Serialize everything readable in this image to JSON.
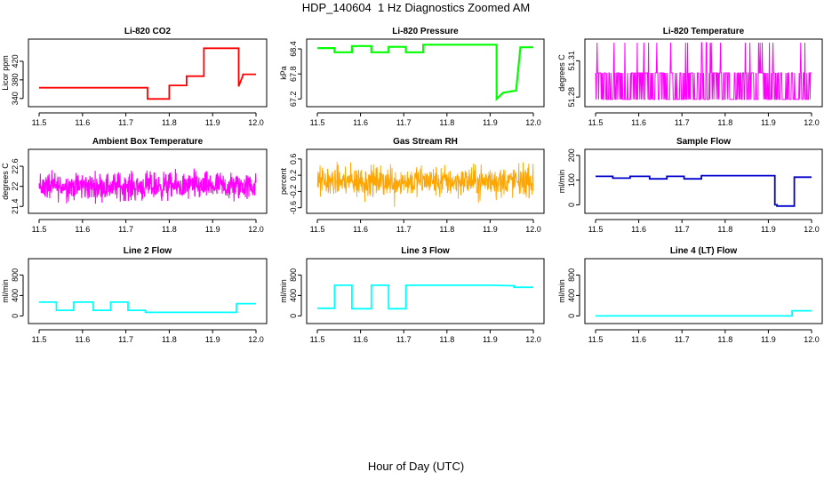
{
  "figure": {
    "title": "HDP_140604  1 Hz Diagnostics Zoomed AM",
    "xlabel": "Hour of Day (UTC)"
  },
  "chart_data": [
    {
      "type": "line",
      "title": "Li-820 CO2",
      "ylabel": "Licor ppm",
      "color": "#ff0000",
      "xlim": [
        11.5,
        12.0
      ],
      "ylim": [
        330,
        460
      ],
      "yticks": [
        340,
        380,
        420
      ],
      "xticks": [
        "11.5",
        "11.6",
        "11.7",
        "11.8",
        "11.9",
        "12.0"
      ],
      "x": [
        11.5,
        11.75,
        11.75,
        11.8,
        11.8,
        11.84,
        11.84,
        11.88,
        11.88,
        11.96,
        11.96,
        11.97,
        11.97,
        12.0
      ],
      "y": [
        363,
        363,
        339,
        339,
        368,
        368,
        388,
        388,
        448,
        448,
        366,
        390,
        392,
        392
      ]
    },
    {
      "type": "line",
      "title": "Li-820 Pressure",
      "ylabel": "kPa",
      "color": "#00ff00",
      "xlim": [
        11.5,
        12.0
      ],
      "ylim": [
        67.1,
        68.55
      ],
      "yticks": [
        67.2,
        67.8,
        68.4
      ],
      "xticks": [
        "11.5",
        "11.6",
        "11.7",
        "11.8",
        "11.9",
        "12.0"
      ],
      "x": [
        11.5,
        11.54,
        11.54,
        11.58,
        11.58,
        11.625,
        11.625,
        11.665,
        11.665,
        11.705,
        11.705,
        11.745,
        11.745,
        11.915,
        11.915,
        11.93,
        11.93,
        11.96,
        11.96,
        11.97,
        11.97,
        12.0
      ],
      "y": [
        68.42,
        68.42,
        68.32,
        68.32,
        68.47,
        68.47,
        68.32,
        68.32,
        68.45,
        68.45,
        68.32,
        68.32,
        68.5,
        68.5,
        67.2,
        67.35,
        67.35,
        67.4,
        67.4,
        68.42,
        68.44,
        68.44
      ]
    },
    {
      "type": "line",
      "title": "Li-820 Temperature",
      "ylabel": "degrees C",
      "color": "#ff00ff",
      "xlim": [
        11.5,
        12.0
      ],
      "ylim": [
        51.275,
        51.325
      ],
      "yticks": [
        51.28,
        51.31
      ],
      "xticks": [
        "11.5",
        "11.6",
        "11.7",
        "11.8",
        "11.9",
        "12.0"
      ],
      "base": 51.3,
      "high": 51.325,
      "low": 51.278
    },
    {
      "type": "line",
      "title": "Ambient Box Temperature",
      "ylabel": "degrees C",
      "color": "#ff00ff",
      "xlim": [
        11.5,
        12.0
      ],
      "ylim": [
        21.3,
        23.0
      ],
      "yticks": [
        21.4,
        22.0,
        22.6
      ],
      "xticks": [
        "11.5",
        "11.6",
        "11.7",
        "11.8",
        "11.9",
        "12.0"
      ],
      "center": 22.0,
      "spread": 0.55
    },
    {
      "type": "line",
      "title": "Gas Stream RH",
      "ylabel": "percent",
      "color": "#ffa500",
      "xlim": [
        11.5,
        12.0
      ],
      "ylim": [
        -0.65,
        0.75
      ],
      "yticks": [
        -0.6,
        -0.2,
        0.2,
        0.6
      ],
      "xticks": [
        "11.5",
        "11.6",
        "11.7",
        "11.8",
        "11.9",
        "12.0"
      ],
      "center": 0.05,
      "spread": 0.5
    },
    {
      "type": "line",
      "title": "Sample Flow",
      "ylabel": "ml/min",
      "color": "#0000cd",
      "xlim": [
        11.5,
        12.0
      ],
      "ylim": [
        -20,
        210
      ],
      "yticks": [
        0,
        100,
        200
      ],
      "xticks": [
        "11.5",
        "11.6",
        "11.7",
        "11.8",
        "11.9",
        "12.0"
      ],
      "x": [
        11.5,
        11.54,
        11.54,
        11.58,
        11.58,
        11.625,
        11.625,
        11.665,
        11.665,
        11.705,
        11.705,
        11.745,
        11.745,
        11.915,
        11.915,
        11.92,
        11.92,
        11.96,
        11.96,
        12.0
      ],
      "y": [
        115,
        115,
        108,
        108,
        115,
        115,
        105,
        105,
        115,
        115,
        105,
        105,
        118,
        118,
        0,
        0,
        -5,
        -5,
        112,
        112
      ]
    },
    {
      "type": "line",
      "title": "Line 2 Flow",
      "ylabel": "ml/min",
      "color": "#00ffff",
      "xlim": [
        11.5,
        12.0
      ],
      "ylim": [
        -80,
        1050
      ],
      "yticks": [
        0,
        400,
        800
      ],
      "xticks": [
        "11.5",
        "11.6",
        "11.7",
        "11.8",
        "11.9",
        "12.0"
      ],
      "x": [
        11.5,
        11.54,
        11.54,
        11.58,
        11.58,
        11.625,
        11.625,
        11.665,
        11.665,
        11.705,
        11.705,
        11.745,
        11.745,
        11.955,
        11.955,
        12.0
      ],
      "y": [
        270,
        270,
        110,
        110,
        270,
        270,
        110,
        110,
        270,
        270,
        110,
        110,
        70,
        70,
        240,
        240
      ]
    },
    {
      "type": "line",
      "title": "Line 3 Flow",
      "ylabel": "ml/min",
      "color": "#00ffff",
      "xlim": [
        11.5,
        12.0
      ],
      "ylim": [
        -80,
        1050
      ],
      "yticks": [
        0,
        400,
        800
      ],
      "xticks": [
        "11.5",
        "11.6",
        "11.7",
        "11.8",
        "11.9",
        "12.0"
      ],
      "x": [
        11.5,
        11.54,
        11.54,
        11.58,
        11.58,
        11.625,
        11.625,
        11.665,
        11.665,
        11.705,
        11.705,
        11.75,
        11.9,
        11.955,
        11.955,
        12.0
      ],
      "y": [
        150,
        150,
        600,
        600,
        140,
        140,
        600,
        600,
        140,
        140,
        600,
        600,
        600,
        590,
        560,
        560
      ]
    },
    {
      "type": "line",
      "title": "Line 4 (LT) Flow",
      "ylabel": "ml/min",
      "color": "#00ffff",
      "xlim": [
        11.5,
        12.0
      ],
      "ylim": [
        -80,
        1050
      ],
      "yticks": [
        0,
        400,
        800
      ],
      "xticks": [
        "11.5",
        "11.6",
        "11.7",
        "11.8",
        "11.9",
        "12.0"
      ],
      "x": [
        11.5,
        11.955,
        11.955,
        12.0
      ],
      "y": [
        0,
        0,
        100,
        100
      ]
    }
  ]
}
